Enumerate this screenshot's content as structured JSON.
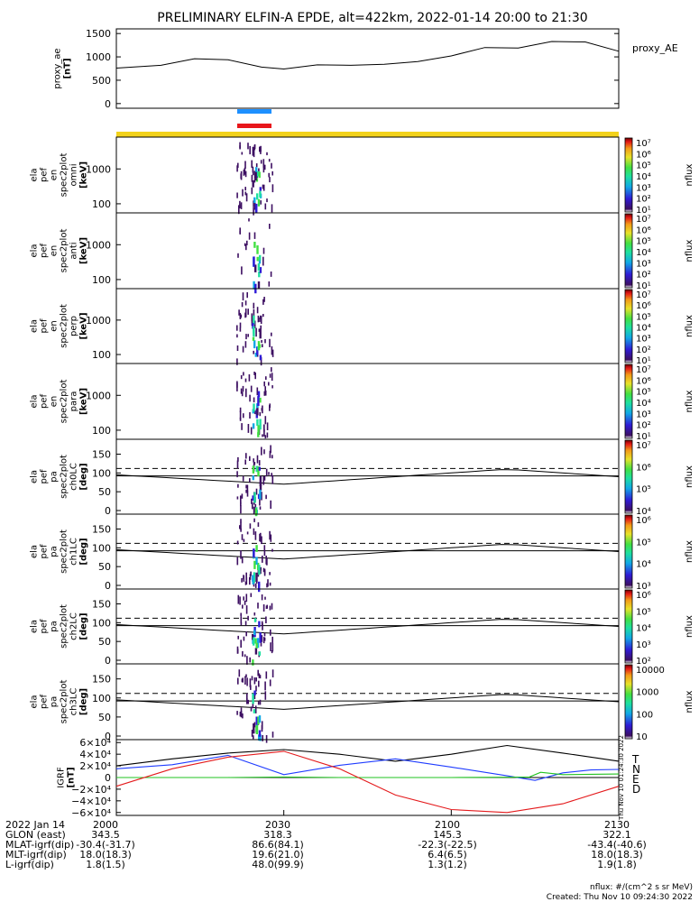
{
  "title": "PRELIMINARY ELFIN-A EPDE, alt=422km, 2022-01-14 20:00 to 21:30",
  "colors": {
    "bar_blue": "#1e90ff",
    "bar_red": "#e8161b",
    "yellow_band": "#f2d21b",
    "trace": "#000000",
    "T": "#000000",
    "N": "#1f3cff",
    "E": "#22c322",
    "D": "#e41a1c"
  },
  "chart_data": [
    {
      "type": "line",
      "panel": "proxy_ae",
      "ylabel": [
        "proxy_ae",
        "[nT]"
      ],
      "legend": "proxy_AE",
      "yticks": [
        "1500",
        "1000",
        "500",
        "0"
      ],
      "ylim": [
        -100,
        1600
      ],
      "x": [
        0,
        8,
        14,
        20,
        26,
        30,
        36,
        42,
        48,
        54,
        60,
        66,
        72,
        78,
        84,
        90
      ],
      "values": [
        760,
        820,
        960,
        940,
        780,
        740,
        830,
        820,
        840,
        900,
        1020,
        1200,
        1190,
        1330,
        1320,
        1120
      ]
    },
    {
      "type": "heatmap",
      "panel": "omni",
      "ylabel": [
        "ela",
        "pef",
        "en",
        "spec2plot",
        "omni",
        "[keV]"
      ],
      "yticks": [
        "1000",
        "100"
      ],
      "cbar_ticks": [
        "10⁷",
        "10⁶",
        "10⁵",
        "10⁴",
        "10³",
        "10²",
        "10¹"
      ],
      "cbar_label": "nflux"
    },
    {
      "type": "heatmap",
      "panel": "anti",
      "ylabel": [
        "ela",
        "pef",
        "en",
        "spec2plot",
        "anti",
        "[keV]"
      ],
      "yticks": [
        "1000",
        "100"
      ],
      "cbar_ticks": [
        "10⁷",
        "10⁶",
        "10⁵",
        "10⁴",
        "10³",
        "10²",
        "10¹"
      ],
      "cbar_label": "nflux"
    },
    {
      "type": "heatmap",
      "panel": "perp",
      "ylabel": [
        "ela",
        "pef",
        "en",
        "spec2plot",
        "perp",
        "[keV]"
      ],
      "yticks": [
        "1000",
        "100"
      ],
      "cbar_ticks": [
        "10⁷",
        "10⁶",
        "10⁵",
        "10⁴",
        "10³",
        "10²",
        "10¹"
      ],
      "cbar_label": "nflux"
    },
    {
      "type": "heatmap",
      "panel": "para",
      "ylabel": [
        "ela",
        "pef",
        "en",
        "spec2plot",
        "para",
        "[keV]"
      ],
      "yticks": [
        "1000",
        "100"
      ],
      "cbar_ticks": [
        "10⁷",
        "10⁶",
        "10⁵",
        "10⁴",
        "10³",
        "10²",
        "10¹"
      ],
      "cbar_label": "nflux"
    },
    {
      "type": "heatmap",
      "panel": "ch0LC",
      "ylabel": [
        "ela",
        "pef",
        "pa",
        "spec2plot",
        "ch0LC",
        "[deg]"
      ],
      "yticks": [
        "150",
        "100",
        "50",
        "0"
      ],
      "ylim": [
        0,
        180
      ],
      "cbar_ticks": [
        "10⁷",
        "10⁶",
        "10⁵",
        "10⁴"
      ],
      "cbar_label": "nflux"
    },
    {
      "type": "heatmap",
      "panel": "ch1LC",
      "ylabel": [
        "ela",
        "pef",
        "pa",
        "spec2plot",
        "ch1LC",
        "[deg]"
      ],
      "yticks": [
        "150",
        "100",
        "50",
        "0"
      ],
      "ylim": [
        0,
        180
      ],
      "cbar_ticks": [
        "10⁶",
        "10⁵",
        "10⁴",
        "10³"
      ],
      "cbar_label": "nflux"
    },
    {
      "type": "heatmap",
      "panel": "ch2LC",
      "ylabel": [
        "ela",
        "pef",
        "pa",
        "spec2plot",
        "ch2LC",
        "[deg]"
      ],
      "yticks": [
        "150",
        "100",
        "50",
        "0"
      ],
      "ylim": [
        0,
        180
      ],
      "cbar_ticks": [
        "10⁶",
        "10⁵",
        "10⁴",
        "10³",
        "10²"
      ],
      "cbar_label": "nflux"
    },
    {
      "type": "heatmap",
      "panel": "ch3LC",
      "ylabel": [
        "ela",
        "pef",
        "pa",
        "spec2plot",
        "ch3LC",
        "[deg]"
      ],
      "yticks": [
        "150",
        "100",
        "50",
        "0"
      ],
      "ylim": [
        0,
        180
      ],
      "cbar_ticks": [
        "10000",
        "1000",
        "100",
        "10"
      ],
      "cbar_label": "nflux"
    },
    {
      "type": "line",
      "panel": "IGRF",
      "ylabel": [
        "IGRF",
        "[nT]"
      ],
      "yticks": [
        "6×10⁴",
        "4×10⁴",
        "2×10⁴",
        "0",
        "−2×10⁴",
        "−4×10⁴",
        "−6×10⁴"
      ],
      "ylim": [
        -65000,
        65000
      ],
      "legend": [
        "T",
        "N",
        "E",
        "D"
      ],
      "series": [
        {
          "name": "T",
          "x": [
            0,
            10,
            20,
            30,
            40,
            50,
            60,
            70,
            80,
            90
          ],
          "values": [
            20000,
            32000,
            42000,
            48000,
            40000,
            28000,
            40000,
            55000,
            42000,
            28000
          ]
        },
        {
          "name": "N",
          "x": [
            0,
            10,
            20,
            30,
            40,
            50,
            60,
            70,
            75,
            80,
            85,
            90
          ],
          "values": [
            15000,
            22000,
            38000,
            5000,
            21000,
            32000,
            18000,
            3000,
            -5000,
            8000,
            13000,
            14000
          ]
        },
        {
          "name": "E",
          "x": [
            0,
            10,
            20,
            30,
            40,
            50,
            60,
            70,
            74,
            76,
            80,
            90
          ],
          "values": [
            0,
            0,
            0,
            1000,
            0,
            0,
            0,
            500,
            1000,
            9000,
            5000,
            6000
          ]
        },
        {
          "name": "D",
          "x": [
            0,
            10,
            20,
            30,
            40,
            50,
            60,
            70,
            80,
            90
          ],
          "values": [
            -15000,
            15000,
            35000,
            45000,
            15000,
            -30000,
            -55000,
            -60000,
            -45000,
            -15000
          ]
        }
      ],
      "side_label": "Thu Nov 10 01:24:30 2022"
    }
  ],
  "x_axis": {
    "rows": [
      {
        "label": "2022 Jan 14",
        "values": [
          "2000",
          "2030",
          "2100",
          "2130"
        ]
      },
      {
        "label": "GLON (east)",
        "values": [
          "343.5",
          "318.3",
          "145.3",
          "322.1"
        ]
      },
      {
        "label": "MLAT-igrf(dip)",
        "values": [
          "-30.4(-31.7)",
          "86.6(84.1)",
          "-22.3(-22.5)",
          "-43.4(-40.6)"
        ]
      },
      {
        "label": "MLT-igrf(dip)",
        "values": [
          "18.0(18.3)",
          "19.6(21.0)",
          "6.4(6.5)",
          "18.0(18.3)"
        ]
      },
      {
        "label": "L-igrf(dip)",
        "values": [
          "1.8(1.5)",
          "48.0(99.9)",
          "1.3(1.2)",
          "1.9(1.8)"
        ]
      }
    ]
  },
  "footer": {
    "units": "nflux: #/(cm^2 s sr MeV)",
    "created": "Created: Thu Nov 10 09:24:30 2022"
  }
}
